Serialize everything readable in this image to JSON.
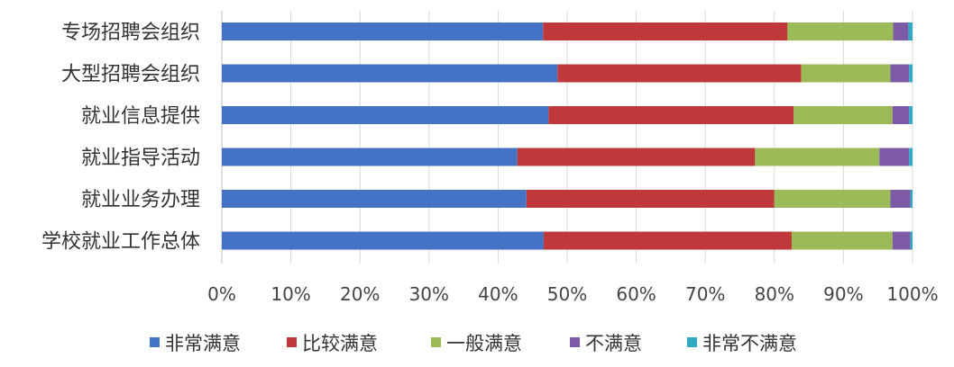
{
  "chart_data": {
    "type": "bar",
    "orientation": "horizontal",
    "stacked": "percent",
    "categories": [
      "专场招聘会组织",
      "大型招聘会组织",
      "就业信息提供",
      "就业指导活动",
      "就业业务办理",
      "学校就业工作总体"
    ],
    "series": [
      {
        "name": "非常满意",
        "color": "#4472c4",
        "values": [
          46.5,
          48.6,
          47.3,
          42.8,
          44.1,
          46.6
        ]
      },
      {
        "name": "比较满意",
        "color": "#c0393a",
        "values": [
          35.4,
          35.3,
          35.5,
          34.4,
          35.9,
          35.9
        ]
      },
      {
        "name": "一般满意",
        "color": "#9bbb59",
        "values": [
          15.3,
          12.9,
          14.3,
          18.0,
          16.8,
          14.6
        ]
      },
      {
        "name": "不满意",
        "color": "#7d5aa6",
        "values": [
          2.2,
          2.7,
          2.4,
          4.3,
          2.9,
          2.6
        ]
      },
      {
        "name": "非常不满意",
        "color": "#31a9c2",
        "values": [
          0.6,
          0.5,
          0.5,
          0.5,
          0.3,
          0.3
        ]
      }
    ],
    "xlim": [
      0,
      100
    ],
    "ticks": [
      "0%",
      "10%",
      "20%",
      "30%",
      "40%",
      "50%",
      "60%",
      "70%",
      "80%",
      "90%",
      "100%"
    ],
    "grid": true,
    "legend": "bottom"
  }
}
